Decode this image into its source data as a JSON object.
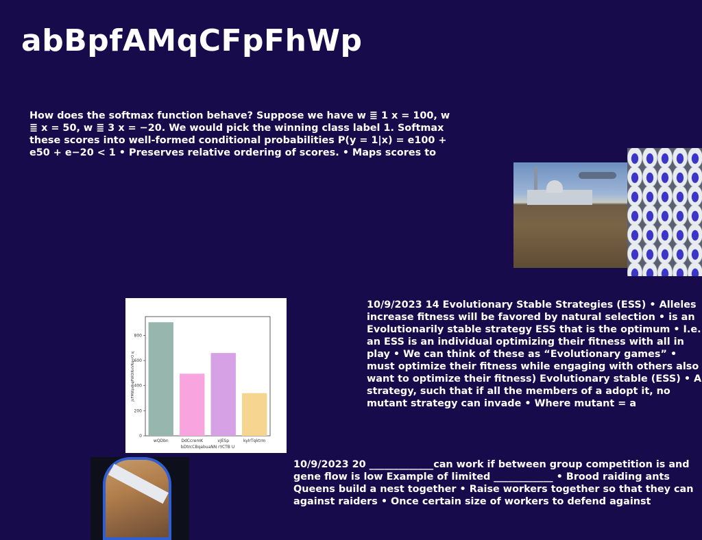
{
  "title": "abBpfAMqCFpFhWp",
  "paragraphs": {
    "p1": "How does the softmax function behave? Suppose we have w ≣ 1 x = 100, w ≣ x = 50, w ≣ 3 x = −20. We would pick the winning class label 1. Softmax these scores into well-formed conditional probabilities P(y = 1|x) = e100 + e50 + e−20 < 1 • Preserves relative ordering of scores. • Maps scores to",
    "p2": "10/9/2023 14 Evolutionary Stable Strategies (ESS) • Alleles increase fitness will be favored by natural selection • is an Evolutionarily stable strategy ESS that is the optimum • I.e. an ESS is an individual optimizing their fitness with all in play • We can think of these as “Evolutionary games” • must optimize their fitness while engaging with others also want to optimize their fitness) Evolutionary stable (ESS) • A strategy, such that if all the members of a adopt it, no mutant strategy can invade • Where mutant = a",
    "p3": "10/9/2023 20 _____________can work if between group competition is and gene flow is low Example of limited ____________ • Brood raiding ants Queens build a nest together • Raise workers together so that they can against raiders • Once certain size of workers to defend against"
  },
  "chart_data": {
    "type": "bar",
    "title": "",
    "categories": [
      "wQDbn",
      "DdCcremK",
      "vjESp",
      "kyIrTqktrm"
    ],
    "values": [
      905,
      495,
      660,
      340
    ],
    "colors": [
      "#97b7ae",
      "#f8a4df",
      "#d7a1e5",
      "#f5d58f"
    ],
    "xlabel": "bDtrcCBqabuaNN rYCTB U",
    "ylabel": "JcFMWpdbqPWOlRxVRqxrO sj",
    "yticks": [
      0,
      200,
      400,
      600,
      800
    ],
    "ylim": [
      0,
      950
    ],
    "grid": false
  }
}
